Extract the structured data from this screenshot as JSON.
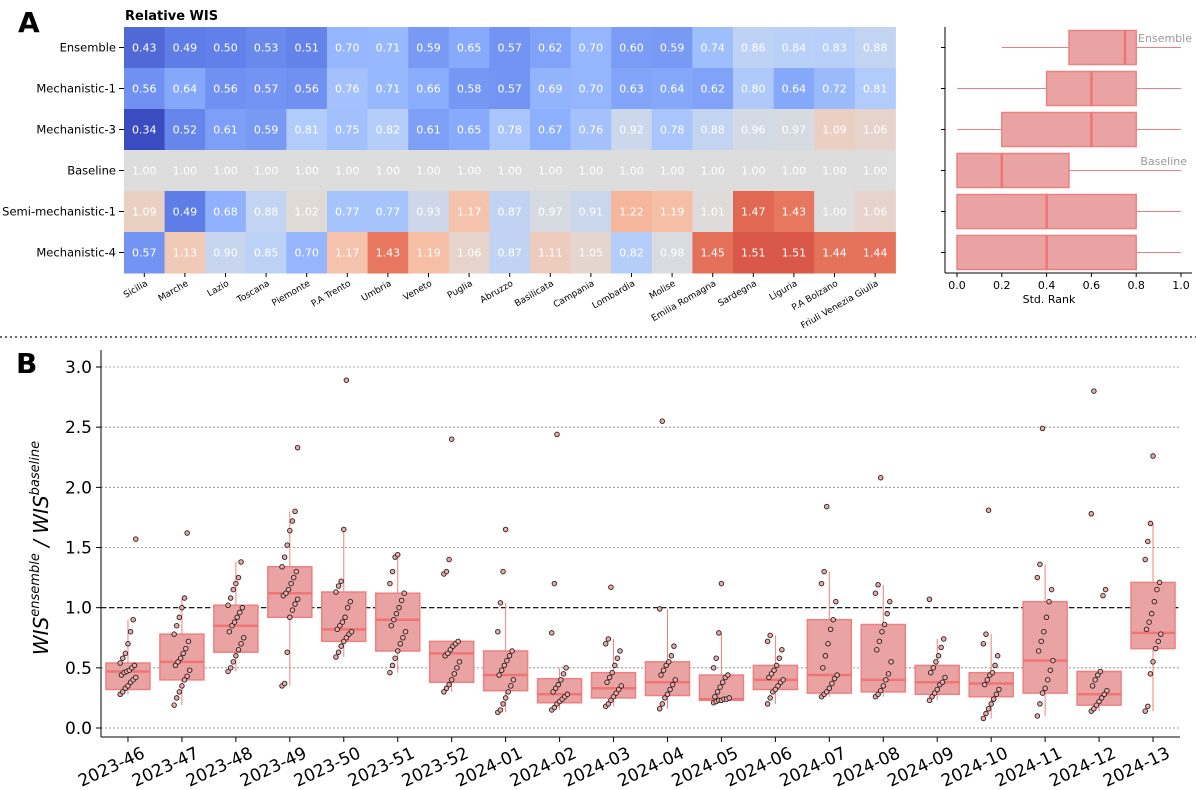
{
  "panel_labels": {
    "a": "A",
    "b": "B"
  },
  "colors": {
    "box_fill": "#e9a3a3",
    "box_edge": "#f08080",
    "median": "#f07474",
    "point_fill": "#f2a6a6",
    "point_edge": "#222222",
    "reference_line": "#000000"
  },
  "chart_data": [
    {
      "type": "heatmap",
      "title": "Relative WIS",
      "colormap": "coolwarm",
      "color_center": 1.0,
      "rows": [
        "Ensemble",
        "Mechanistic-1",
        "Mechanistic-3",
        "Baseline",
        "Semi-mechanistic-1",
        "Mechanistic-4"
      ],
      "columns": [
        "Sicilia",
        "Marche",
        "Lazio",
        "Toscana",
        "Piemonte",
        "P.A Trento",
        "Umbria",
        "Veneto",
        "Puglia",
        "Abruzzo",
        "Basilicata",
        "Campania",
        "Lombardia",
        "Molise",
        "Emilia Romagna",
        "Sardegna",
        "Liguria",
        "P.A Bolzano",
        "Friuli Venezia Giulia"
      ],
      "values": [
        [
          0.43,
          0.49,
          0.5,
          0.53,
          0.51,
          0.7,
          0.71,
          0.59,
          0.65,
          0.57,
          0.62,
          0.7,
          0.6,
          0.59,
          0.74,
          0.86,
          0.84,
          0.83,
          0.88
        ],
        [
          0.56,
          0.64,
          0.56,
          0.57,
          0.56,
          0.76,
          0.71,
          0.66,
          0.58,
          0.57,
          0.69,
          0.7,
          0.63,
          0.64,
          0.62,
          0.8,
          0.64,
          0.72,
          0.81
        ],
        [
          0.34,
          0.52,
          0.61,
          0.59,
          0.81,
          0.75,
          0.82,
          0.61,
          0.65,
          0.78,
          0.67,
          0.76,
          0.92,
          0.78,
          0.88,
          0.96,
          0.97,
          1.09,
          1.06
        ],
        [
          1.0,
          1.0,
          1.0,
          1.0,
          1.0,
          1.0,
          1.0,
          1.0,
          1.0,
          1.0,
          1.0,
          1.0,
          1.0,
          1.0,
          1.0,
          1.0,
          1.0,
          1.0,
          1.0
        ],
        [
          1.09,
          0.49,
          0.68,
          0.88,
          1.02,
          0.77,
          0.77,
          0.93,
          1.17,
          0.87,
          0.97,
          0.91,
          1.22,
          1.19,
          1.01,
          1.47,
          1.43,
          1.0,
          1.06
        ],
        [
          0.57,
          1.13,
          0.9,
          0.85,
          0.7,
          1.17,
          1.43,
          1.19,
          1.06,
          0.87,
          1.11,
          1.05,
          0.82,
          0.98,
          1.45,
          1.51,
          1.51,
          1.44,
          1.44
        ]
      ]
    },
    {
      "type": "box",
      "orientation": "horizontal",
      "xlabel": "Std. Rank",
      "xlim": [
        0,
        1
      ],
      "xticks": [
        "0.0",
        "0.2",
        "0.4",
        "0.6",
        "0.8",
        "1.0"
      ],
      "annotations": [
        "Ensemble",
        "Baseline"
      ],
      "boxes": [
        {
          "row": "Ensemble",
          "whislo": 0.2,
          "q1": 0.5,
          "med": 0.75,
          "q3": 0.8,
          "whishi": 1.0
        },
        {
          "row": "Mechanistic-1",
          "whislo": 0.0,
          "q1": 0.4,
          "med": 0.6,
          "q3": 0.8,
          "whishi": 1.0
        },
        {
          "row": "Mechanistic-3",
          "whislo": 0.0,
          "q1": 0.2,
          "med": 0.6,
          "q3": 0.8,
          "whishi": 1.0
        },
        {
          "row": "Baseline",
          "whislo": 0.0,
          "q1": 0.0,
          "med": 0.2,
          "q3": 0.5,
          "whishi": 1.0
        },
        {
          "row": "Semi-mechanistic-1",
          "whislo": 0.0,
          "q1": 0.0,
          "med": 0.4,
          "q3": 0.8,
          "whishi": 1.0
        },
        {
          "row": "Mechanistic-4",
          "whislo": 0.0,
          "q1": 0.0,
          "med": 0.4,
          "q3": 0.8,
          "whishi": 1.0
        }
      ]
    },
    {
      "type": "box",
      "ylabel_main": [
        "WIS",
        " / WIS"
      ],
      "ylabel_sup": [
        "ensemble",
        "baseline"
      ],
      "ylim": [
        0,
        3.0
      ],
      "yticks": [
        "0.0",
        "0.5",
        "1.0",
        "1.5",
        "2.0",
        "2.5",
        "3.0"
      ],
      "grid": "horizontal dotted",
      "reference_line": 1.0,
      "categories": [
        "2023-46",
        "2023-47",
        "2023-48",
        "2023-49",
        "2023-50",
        "2023-51",
        "2023-52",
        "2024-01",
        "2024-02",
        "2024-03",
        "2024-04",
        "2024-05",
        "2024-06",
        "2024-07",
        "2024-08",
        "2024-09",
        "2024-10",
        "2024-11",
        "2024-12",
        "2024-13"
      ],
      "boxes": [
        {
          "q1": 0.32,
          "med": 0.47,
          "q3": 0.54,
          "whislo": 0.28,
          "whishi": 0.9,
          "points": [
            0.28,
            0.3,
            0.33,
            0.35,
            0.38,
            0.4,
            0.42,
            0.44,
            0.46,
            0.47,
            0.48,
            0.5,
            0.52,
            0.54,
            0.58,
            0.62,
            0.7,
            0.8,
            0.9,
            1.57
          ]
        },
        {
          "q1": 0.4,
          "med": 0.55,
          "q3": 0.78,
          "whislo": 0.19,
          "whishi": 1.08,
          "points": [
            0.19,
            0.25,
            0.3,
            0.35,
            0.4,
            0.43,
            0.48,
            0.52,
            0.55,
            0.58,
            0.62,
            0.66,
            0.72,
            0.78,
            0.85,
            0.92,
            1.0,
            1.08,
            1.62
          ]
        },
        {
          "q1": 0.63,
          "med": 0.85,
          "q3": 1.02,
          "whislo": 0.47,
          "whishi": 1.38,
          "points": [
            0.47,
            0.5,
            0.55,
            0.6,
            0.65,
            0.7,
            0.75,
            0.8,
            0.85,
            0.88,
            0.92,
            0.96,
            1.0,
            1.02,
            1.08,
            1.15,
            1.2,
            1.25,
            1.38
          ]
        },
        {
          "q1": 0.92,
          "med": 1.12,
          "q3": 1.34,
          "whislo": 0.35,
          "whishi": 1.8,
          "points": [
            0.35,
            0.37,
            0.63,
            0.92,
            0.98,
            1.03,
            1.07,
            1.1,
            1.12,
            1.15,
            1.2,
            1.25,
            1.3,
            1.34,
            1.42,
            1.52,
            1.64,
            1.72,
            1.8,
            2.33
          ]
        },
        {
          "q1": 0.72,
          "med": 0.82,
          "q3": 1.13,
          "whislo": 0.59,
          "whishi": 1.65,
          "points": [
            0.59,
            0.63,
            0.68,
            0.72,
            0.75,
            0.78,
            0.8,
            0.82,
            0.85,
            0.88,
            0.92,
            1.0,
            1.05,
            1.13,
            1.18,
            1.22,
            1.65,
            2.89
          ]
        },
        {
          "q1": 0.64,
          "med": 0.9,
          "q3": 1.12,
          "whislo": 0.46,
          "whishi": 1.44,
          "points": [
            0.46,
            0.52,
            0.58,
            0.64,
            0.7,
            0.75,
            0.8,
            0.85,
            0.9,
            0.95,
            1.0,
            1.06,
            1.12,
            1.2,
            1.3,
            1.42,
            1.44
          ]
        },
        {
          "q1": 0.38,
          "med": 0.62,
          "q3": 0.72,
          "whislo": 0.3,
          "whishi": 0.72,
          "points": [
            0.3,
            0.33,
            0.36,
            0.4,
            0.45,
            0.5,
            0.55,
            0.6,
            0.62,
            0.65,
            0.68,
            0.7,
            0.72,
            1.28,
            1.3,
            1.4,
            2.4
          ]
        },
        {
          "q1": 0.31,
          "med": 0.44,
          "q3": 0.64,
          "whislo": 0.13,
          "whishi": 1.04,
          "points": [
            0.13,
            0.15,
            0.2,
            0.25,
            0.3,
            0.35,
            0.4,
            0.44,
            0.48,
            0.52,
            0.56,
            0.6,
            0.64,
            0.8,
            1.04,
            1.3,
            1.65
          ]
        },
        {
          "q1": 0.21,
          "med": 0.28,
          "q3": 0.41,
          "whislo": 0.15,
          "whishi": 0.5,
          "points": [
            0.15,
            0.17,
            0.2,
            0.22,
            0.24,
            0.26,
            0.28,
            0.3,
            0.33,
            0.36,
            0.4,
            0.45,
            0.5,
            0.79,
            1.2,
            2.44
          ]
        },
        {
          "q1": 0.25,
          "med": 0.33,
          "q3": 0.46,
          "whislo": 0.18,
          "whishi": 0.74,
          "points": [
            0.18,
            0.2,
            0.23,
            0.26,
            0.29,
            0.32,
            0.35,
            0.38,
            0.42,
            0.46,
            0.52,
            0.58,
            0.64,
            0.7,
            0.74,
            1.17
          ]
        },
        {
          "q1": 0.27,
          "med": 0.38,
          "q3": 0.55,
          "whislo": 0.16,
          "whishi": 0.99,
          "points": [
            0.16,
            0.2,
            0.25,
            0.28,
            0.32,
            0.36,
            0.4,
            0.44,
            0.48,
            0.52,
            0.55,
            0.6,
            0.68,
            0.99,
            2.55
          ]
        },
        {
          "q1": 0.23,
          "med": 0.24,
          "q3": 0.44,
          "whislo": 0.21,
          "whishi": 0.79,
          "points": [
            0.21,
            0.22,
            0.23,
            0.23,
            0.24,
            0.24,
            0.25,
            0.26,
            0.3,
            0.34,
            0.38,
            0.42,
            0.44,
            0.5,
            0.58,
            0.79,
            1.2
          ]
        },
        {
          "q1": 0.32,
          "med": 0.4,
          "q3": 0.52,
          "whislo": 0.2,
          "whishi": 0.77,
          "points": [
            0.2,
            0.25,
            0.3,
            0.32,
            0.35,
            0.38,
            0.4,
            0.42,
            0.45,
            0.48,
            0.52,
            0.58,
            0.65,
            0.72,
            0.77
          ]
        },
        {
          "q1": 0.29,
          "med": 0.44,
          "q3": 0.9,
          "whislo": 0.26,
          "whishi": 1.3,
          "points": [
            0.26,
            0.28,
            0.3,
            0.33,
            0.37,
            0.41,
            0.44,
            0.5,
            0.6,
            0.7,
            0.82,
            0.9,
            1.05,
            1.2,
            1.3,
            1.84
          ]
        },
        {
          "q1": 0.3,
          "med": 0.4,
          "q3": 0.86,
          "whislo": 0.26,
          "whishi": 1.19,
          "points": [
            0.26,
            0.28,
            0.31,
            0.35,
            0.4,
            0.45,
            0.55,
            0.65,
            0.72,
            0.8,
            0.86,
            0.95,
            1.05,
            1.12,
            1.19,
            2.08
          ]
        },
        {
          "q1": 0.28,
          "med": 0.38,
          "q3": 0.52,
          "whislo": 0.23,
          "whishi": 0.74,
          "points": [
            0.23,
            0.26,
            0.29,
            0.32,
            0.36,
            0.38,
            0.42,
            0.46,
            0.5,
            0.55,
            0.6,
            0.67,
            0.74,
            1.07
          ]
        },
        {
          "q1": 0.26,
          "med": 0.37,
          "q3": 0.46,
          "whislo": 0.08,
          "whishi": 0.78,
          "points": [
            0.08,
            0.12,
            0.16,
            0.2,
            0.24,
            0.28,
            0.32,
            0.36,
            0.4,
            0.44,
            0.46,
            0.52,
            0.6,
            0.7,
            0.78,
            1.81
          ]
        },
        {
          "q1": 0.29,
          "med": 0.56,
          "q3": 1.05,
          "whislo": 0.1,
          "whishi": 1.36,
          "points": [
            0.1,
            0.2,
            0.29,
            0.33,
            0.4,
            0.48,
            0.56,
            0.64,
            0.72,
            0.8,
            0.92,
            1.05,
            1.15,
            1.25,
            1.36,
            2.49
          ]
        },
        {
          "q1": 0.19,
          "med": 0.28,
          "q3": 0.47,
          "whislo": 0.14,
          "whishi": 0.47,
          "points": [
            0.14,
            0.16,
            0.19,
            0.22,
            0.25,
            0.28,
            0.31,
            0.35,
            0.4,
            0.44,
            0.47,
            1.1,
            1.15,
            1.78,
            2.8
          ]
        },
        {
          "q1": 0.66,
          "med": 0.79,
          "q3": 1.21,
          "whislo": 0.14,
          "whishi": 1.7,
          "points": [
            0.14,
            0.18,
            0.45,
            0.55,
            0.66,
            0.72,
            0.78,
            0.82,
            0.88,
            0.95,
            1.05,
            1.15,
            1.21,
            1.4,
            1.55,
            1.7,
            2.26
          ]
        }
      ]
    }
  ]
}
